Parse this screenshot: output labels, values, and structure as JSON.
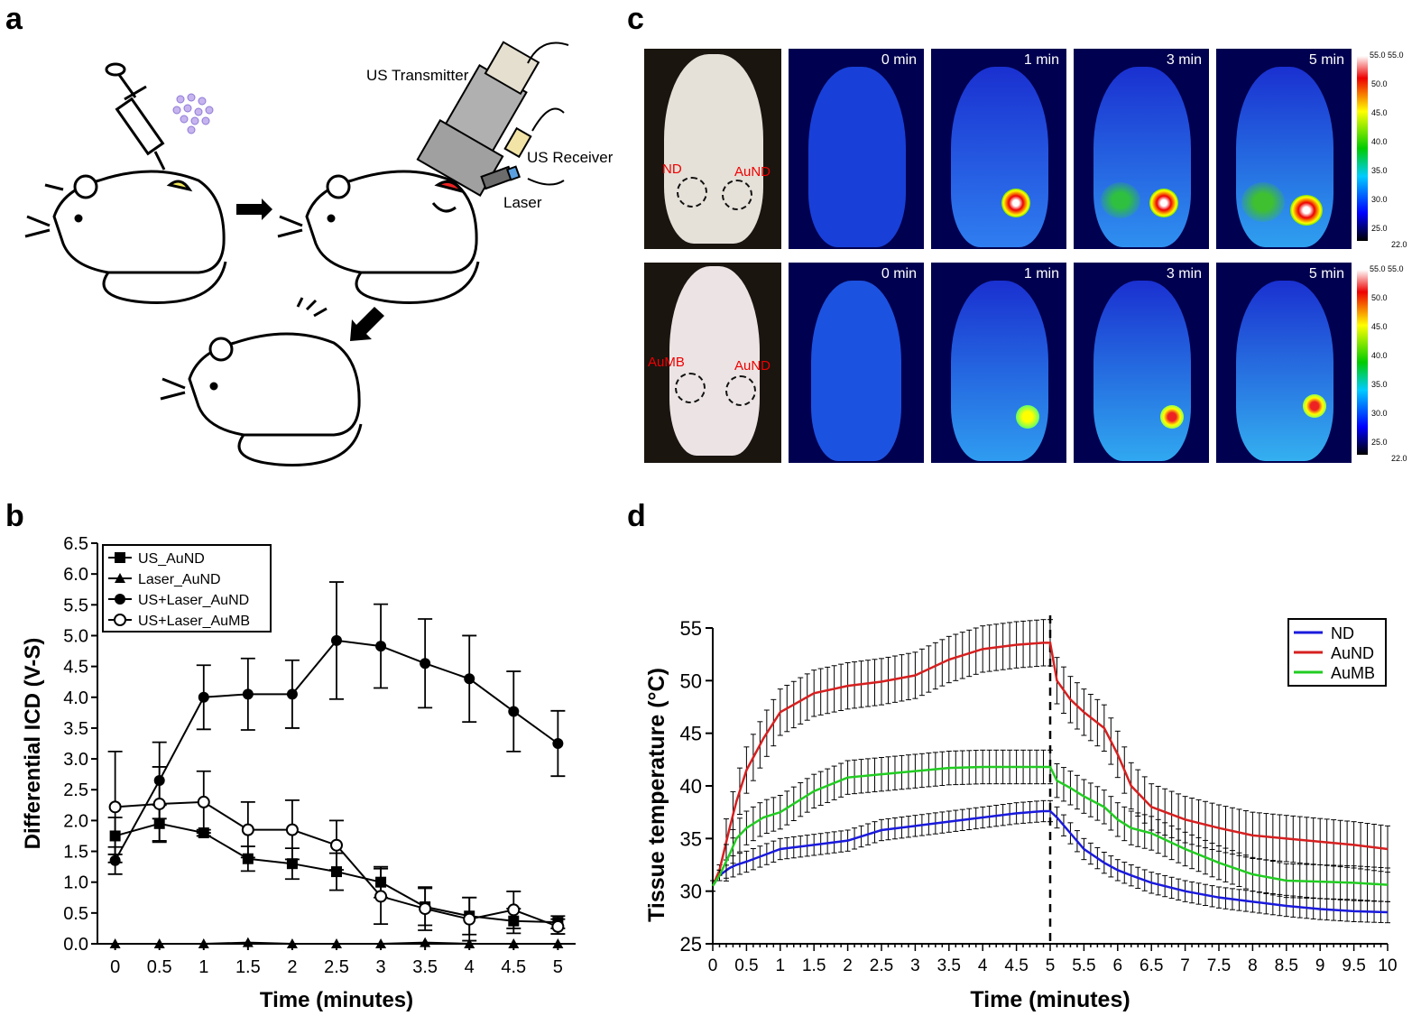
{
  "panels": {
    "a": "a",
    "b": "b",
    "c": "c",
    "d": "d"
  },
  "schematic": {
    "labels": {
      "transmitter": "US Transmitter",
      "receiver": "US Receiver",
      "laser": "Laser"
    }
  },
  "thermal": {
    "time_labels": [
      "0 min",
      "1 min",
      "3 min",
      "5 min"
    ],
    "row1_labels": {
      "left": "ND",
      "right": "AuND"
    },
    "row2_labels": {
      "left": "AuMB",
      "right": "AuND"
    },
    "scale_labels": [
      "55.0 55.0",
      "50.0",
      "45.0",
      "40.0",
      "35.0",
      "30.0",
      "25.0",
      "22.0"
    ]
  },
  "chart_data": [
    {
      "type": "line",
      "id": "b",
      "xlabel": "Time (minutes)",
      "ylabel": "Differential ICD (V-S)",
      "x": [
        0,
        0.5,
        1,
        1.5,
        2,
        2.5,
        3,
        3.5,
        4,
        4.5,
        5
      ],
      "xticks": [
        "0",
        "0.5",
        "1",
        "1.5",
        "2",
        "2.5",
        "3",
        "3.5",
        "4",
        "4.5",
        "5"
      ],
      "yticks": [
        "0.0",
        "0.5",
        "1.0",
        "1.5",
        "2.0",
        "2.5",
        "3.0",
        "3.5",
        "4.0",
        "4.5",
        "5.0",
        "5.5",
        "6.0",
        "6.5"
      ],
      "ylim": [
        0,
        6.5
      ],
      "series": [
        {
          "name": "US_AuND",
          "marker": "square",
          "values": [
            1.75,
            1.95,
            1.8,
            1.38,
            1.3,
            1.17,
            1.0,
            0.6,
            0.45,
            0.37,
            0.35
          ],
          "err": [
            0.3,
            0.3,
            0.05,
            0.2,
            0.25,
            0.3,
            0.25,
            0.3,
            0.3,
            0.2,
            0.1
          ]
        },
        {
          "name": "Laser_AuND",
          "marker": "triangle",
          "values": [
            0,
            0,
            0,
            0.02,
            0,
            0,
            0,
            0.02,
            0,
            0,
            0
          ],
          "err": [
            0,
            0,
            0,
            0.02,
            0,
            0,
            0,
            0.02,
            0,
            0,
            0
          ]
        },
        {
          "name": "US+Laser_AuND",
          "marker": "circle",
          "values": [
            1.35,
            2.65,
            4.0,
            4.05,
            4.05,
            4.92,
            4.83,
            4.55,
            4.3,
            3.77,
            3.25
          ],
          "err": [
            0.22,
            0.62,
            0.52,
            0.58,
            0.55,
            0.95,
            0.68,
            0.72,
            0.7,
            0.65,
            0.53
          ]
        },
        {
          "name": "US+Laser_AuMB",
          "marker": "open-circle",
          "values": [
            2.22,
            2.27,
            2.3,
            1.85,
            1.85,
            1.6,
            0.77,
            0.57,
            0.4,
            0.55,
            0.28
          ],
          "err": [
            0.9,
            0.6,
            0.5,
            0.45,
            0.48,
            0.4,
            0.45,
            0.35,
            0.35,
            0.3,
            0.12
          ]
        }
      ]
    },
    {
      "type": "line",
      "id": "d",
      "xlabel": "Time (minutes)",
      "ylabel": "Tissue temperature (°C)",
      "x": [
        0,
        0.1,
        0.25,
        0.35,
        0.5,
        0.75,
        1,
        1.5,
        2,
        2.5,
        3,
        3.5,
        4,
        4.5,
        4.9,
        5,
        5.1,
        5.3,
        5.5,
        5.8,
        6,
        6.2,
        6.5,
        7,
        7.5,
        8,
        8.5,
        9,
        9.5,
        10
      ],
      "xticks": [
        "0",
        "0.5",
        "1",
        "1.5",
        "2",
        "2.5",
        "3",
        "3.5",
        "4",
        "4.5",
        "5",
        "5.5",
        "6",
        "6.5",
        "7",
        "7.5",
        "8",
        "8.5",
        "9",
        "9.5",
        "10"
      ],
      "yticks": [
        "25",
        "30",
        "35",
        "40",
        "45",
        "50",
        "55"
      ],
      "ylim": [
        25,
        55
      ],
      "xlim": [
        0,
        10
      ],
      "vline": 5,
      "series": [
        {
          "name": "ND",
          "color": "#1a1adc",
          "values": [
            30.5,
            31.5,
            32.2,
            32.5,
            32.8,
            33.4,
            34.0,
            34.4,
            34.8,
            35.8,
            36.2,
            36.6,
            37.0,
            37.4,
            37.6,
            37.6,
            37.0,
            35.5,
            34.0,
            32.7,
            32.0,
            31.5,
            30.8,
            30.0,
            29.4,
            29.0,
            28.6,
            28.3,
            28.1,
            28.0
          ],
          "err": 1.0
        },
        {
          "name": "AuND",
          "color": "#d62020",
          "values": [
            30.5,
            32,
            36.0,
            38.5,
            41.5,
            44.5,
            47.0,
            48.8,
            49.5,
            49.9,
            50.5,
            52.0,
            53.0,
            53.4,
            53.6,
            53.6,
            50.0,
            48.2,
            47.0,
            45.5,
            43.0,
            40.0,
            38.0,
            36.8,
            36.0,
            35.3,
            35.0,
            34.7,
            34.4,
            34.0
          ],
          "err": 2.2
        },
        {
          "name": "AuMB",
          "color": "#22cc22",
          "values": [
            30.5,
            31.5,
            33.5,
            35.0,
            36.0,
            37.0,
            37.5,
            39.5,
            40.8,
            41.1,
            41.4,
            41.7,
            41.8,
            41.8,
            41.8,
            41.8,
            40.5,
            39.8,
            39.0,
            38.0,
            36.8,
            36.0,
            35.5,
            34.0,
            32.7,
            31.6,
            31.0,
            30.9,
            30.8,
            30.6
          ],
          "err": 1.6
        }
      ]
    }
  ]
}
